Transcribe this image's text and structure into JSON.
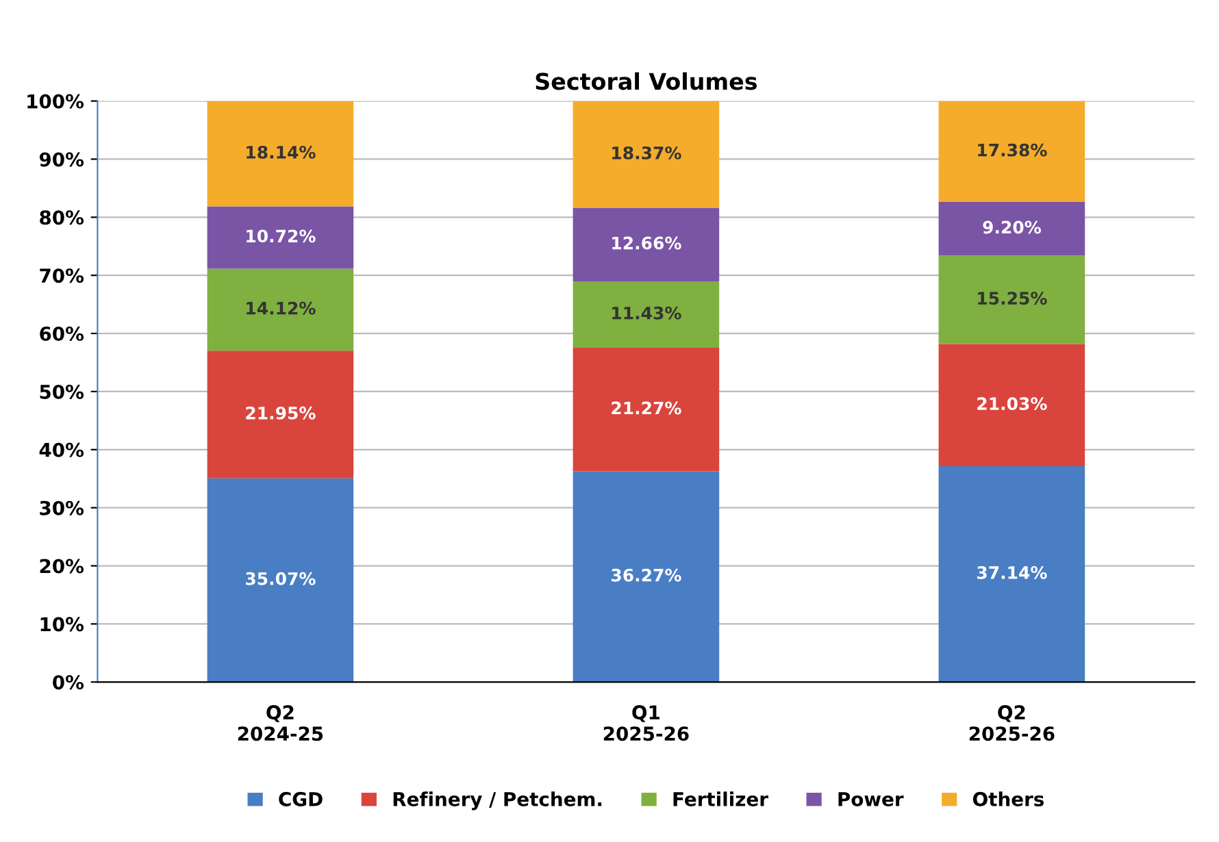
{
  "chart_data": {
    "type": "bar",
    "title": "Sectoral Volumes",
    "stacked": true,
    "categories": [
      "Q2\n2024-25",
      "Q1\n2025-26",
      "Q2\n2025-26"
    ],
    "series": [
      {
        "name": "CGD",
        "color": "#4a7ec4",
        "values": [
          35.07,
          36.27,
          37.14
        ],
        "value_labels": [
          "35.07%",
          "36.27%",
          "37.14%"
        ]
      },
      {
        "name": "Refinery / Petchem.",
        "color": "#d9453d",
        "values": [
          21.95,
          21.27,
          21.03
        ],
        "value_labels": [
          "21.95%",
          "21.27%",
          "21.03%"
        ]
      },
      {
        "name": "Fertilizer",
        "color": "#7fb040",
        "values": [
          14.12,
          11.43,
          15.25
        ],
        "value_labels": [
          "14.12%",
          "11.43%",
          "15.25%"
        ]
      },
      {
        "name": "Power",
        "color": "#7a55a6",
        "values": [
          10.72,
          12.66,
          9.2
        ],
        "value_labels": [
          "10.72%",
          "12.66%",
          "9.20%"
        ]
      },
      {
        "name": "Others",
        "color": "#f5ac2a",
        "values": [
          18.14,
          18.37,
          17.38
        ],
        "value_labels": [
          "18.14%",
          "18.37%",
          "17.38%"
        ]
      }
    ],
    "ylim": [
      0,
      100
    ],
    "yticks": [
      {
        "value": 0,
        "label": "0%"
      },
      {
        "value": 10,
        "label": "10%"
      },
      {
        "value": 20,
        "label": "20%"
      },
      {
        "value": 30,
        "label": "30%"
      },
      {
        "value": 40,
        "label": "40%"
      },
      {
        "value": 50,
        "label": "50%"
      },
      {
        "value": 60,
        "label": "60%"
      },
      {
        "value": 70,
        "label": "70%"
      },
      {
        "value": 80,
        "label": "80%"
      },
      {
        "value": 90,
        "label": "90%"
      },
      {
        "value": 100,
        "label": "100%"
      }
    ],
    "grid": "y",
    "legend": "bottom"
  }
}
